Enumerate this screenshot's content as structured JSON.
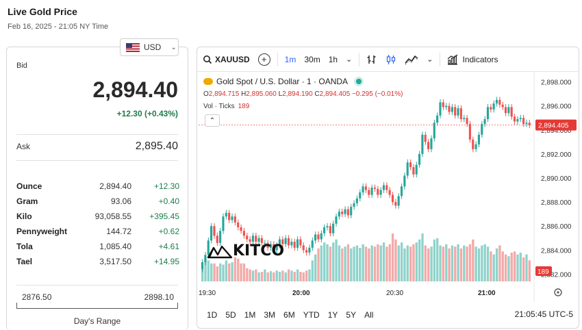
{
  "header": {
    "title": "Live Gold Price",
    "subtitle": "Feb 16, 2025 - 21:05 NY Time"
  },
  "currency": {
    "selected": "USD"
  },
  "quote": {
    "bid_label": "Bid",
    "bid": "2,894.40",
    "change": "+12.30 (+0.43%)",
    "ask_label": "Ask",
    "ask": "2,895.40"
  },
  "units": [
    {
      "name": "Ounce",
      "price": "2,894.40",
      "change": "+12.30"
    },
    {
      "name": "Gram",
      "price": "93.06",
      "change": "+0.40"
    },
    {
      "name": "Kilo",
      "price": "93,058.55",
      "change": "+395.45"
    },
    {
      "name": "Pennyweight",
      "price": "144.72",
      "change": "+0.62"
    },
    {
      "name": "Tola",
      "price": "1,085.40",
      "change": "+4.61"
    },
    {
      "name": "Tael",
      "price": "3,517.50",
      "change": "+14.95"
    }
  ],
  "days_range": {
    "low": "2876.50",
    "high": "2898.10",
    "label": "Day's Range"
  },
  "toolbar": {
    "symbol": "XAUUSD",
    "intervals": [
      "1m",
      "30m",
      "1h"
    ],
    "active_interval": "1m",
    "indicators_label": "Indicators"
  },
  "legend": {
    "name": "Gold Spot / U.S. Dollar · 1 · OANDA",
    "o_label": "O",
    "o": "2,894.715",
    "h_label": "H",
    "h": "2,895.060",
    "l_label": "L",
    "l": "2,894.190",
    "c_label": "C",
    "c": "2,894.405",
    "chg": "−0.295 (−0.01%)",
    "vol_label": "Vol · Ticks",
    "vol_value": "189"
  },
  "watermark": "KITCO",
  "chart_data": {
    "type": "candlestick",
    "y_ticks": [
      "2,898.000",
      "2,896.000",
      "2,894.000",
      "2,892.000",
      "2,890.000",
      "2,888.000",
      "2,886.000",
      "2,884.000",
      "2,882.000"
    ],
    "ylim": [
      2881.4,
      2898.6
    ],
    "x_ticks": [
      "19:30",
      "20:00",
      "20:30",
      "21:00"
    ],
    "last_price_label": "2,894.405",
    "last_price": 2894.405,
    "volume_label": "189",
    "colors": {
      "up": "#26a69a",
      "down": "#ef5350",
      "up_vol": "#8fd3cb",
      "down_vol": "#f3aaa8"
    },
    "closes": [
      2883.0,
      2883.6,
      2884.8,
      2886.0,
      2885.2,
      2884.6,
      2885.6,
      2886.8,
      2887.1,
      2886.5,
      2886.8,
      2886.3,
      2885.9,
      2885.6,
      2885.2,
      2884.9,
      2884.7,
      2885.2,
      2884.7,
      2885.0,
      2884.6,
      2884.6,
      2884.2,
      2884.5,
      2884.0,
      2884.4,
      2884.9,
      2884.5,
      2885.0,
      2884.4,
      2884.7,
      2884.2,
      2884.9,
      2884.4,
      2884.0,
      2883.8,
      2884.2,
      2884.8,
      2885.3,
      2884.9,
      2885.4,
      2885.9,
      2886.0,
      2885.4,
      2886.2,
      2886.8,
      2887.2,
      2887.0,
      2887.4,
      2886.9,
      2887.6,
      2887.9,
      2888.3,
      2888.8,
      2889.3,
      2889.0,
      2888.6,
      2889.2,
      2889.1,
      2888.6,
      2889.0,
      2889.4,
      2889.0,
      2888.6,
      2888.0,
      2887.7,
      2888.5,
      2889.3,
      2890.2,
      2891.3,
      2890.9,
      2890.3,
      2891.1,
      2892.0,
      2893.6,
      2893.0,
      2892.4,
      2893.3,
      2894.6,
      2895.2,
      2896.3,
      2895.9,
      2896.0,
      2895.5,
      2895.9,
      2895.2,
      2895.8,
      2894.9,
      2895.0,
      2894.5,
      2893.2,
      2892.4,
      2892.8,
      2893.6,
      2894.5,
      2894.9,
      2895.9,
      2895.7,
      2896.2,
      2896.5,
      2896.1,
      2895.9,
      2895.4,
      2895.9,
      2895.1,
      2894.7,
      2894.9,
      2895.0,
      2894.5,
      2894.6,
      2894.405
    ],
    "volumes": [
      20,
      40,
      35,
      30,
      30,
      25,
      30,
      28,
      35,
      30,
      32,
      40,
      38,
      30,
      30,
      22,
      20,
      18,
      20,
      15,
      16,
      20,
      15,
      17,
      15,
      18,
      16,
      18,
      15,
      20,
      18,
      16,
      20,
      16,
      15,
      18,
      20,
      35,
      45,
      55,
      60,
      65,
      62,
      58,
      65,
      70,
      60,
      55,
      58,
      62,
      55,
      58,
      60,
      56,
      62,
      58,
      55,
      60,
      58,
      62,
      60,
      65,
      58,
      62,
      80,
      70,
      60,
      65,
      55,
      60,
      58,
      62,
      65,
      70,
      80,
      60,
      55,
      58,
      70,
      72,
      60,
      58,
      62,
      55,
      60,
      58,
      62,
      55,
      60,
      58,
      62,
      70,
      58,
      55,
      60,
      62,
      58,
      50,
      45,
      55,
      60,
      50,
      45,
      42,
      48,
      50,
      45,
      48,
      40,
      45,
      35
    ]
  },
  "ranges": [
    "1D",
    "5D",
    "1M",
    "3M",
    "6M",
    "YTD",
    "1Y",
    "5Y",
    "All"
  ],
  "clock": "21:05:45 UTC-5"
}
